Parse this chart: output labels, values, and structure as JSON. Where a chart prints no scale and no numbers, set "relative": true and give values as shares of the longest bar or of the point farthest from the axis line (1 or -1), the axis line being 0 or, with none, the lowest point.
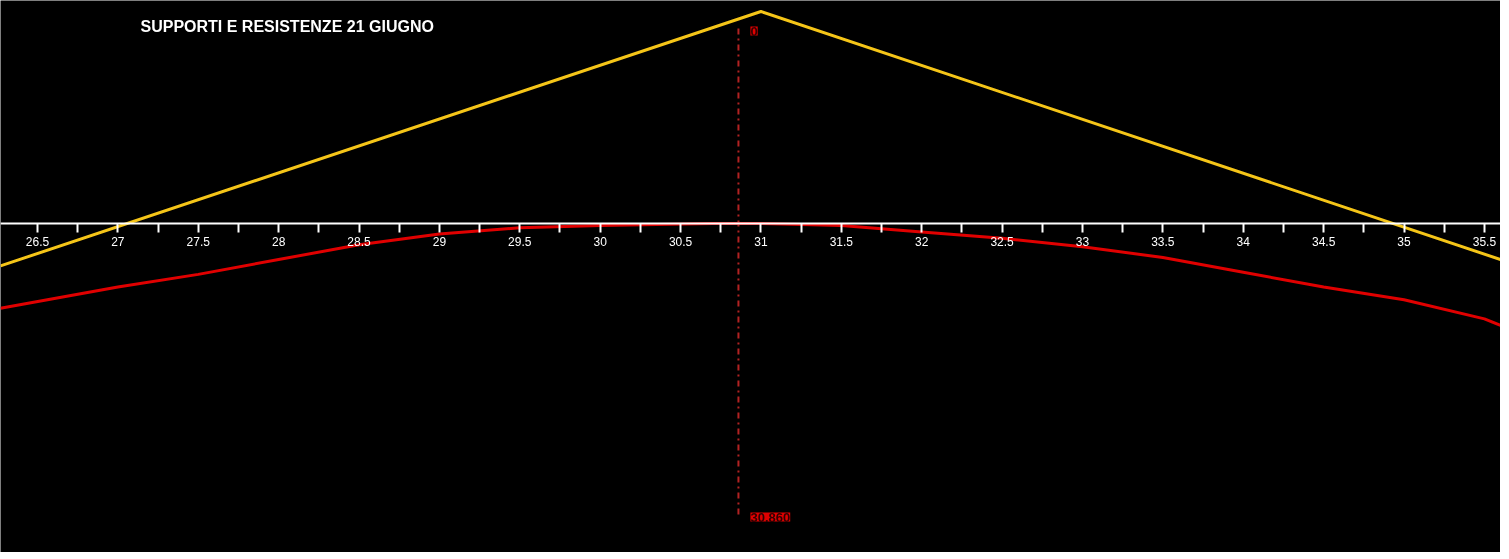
{
  "chart_data": {
    "type": "line",
    "title": "SUPPORTI E RESISTENZE 21 GIUGNO",
    "relative": true,
    "marker": "none",
    "line_style": "solid",
    "xlim": [
      26.27,
      35.6
    ],
    "xticks": [
      26.5,
      {
        "value": 26.75,
        "label": null
      },
      27,
      {
        "value": 27.25,
        "label": null
      },
      27.5,
      {
        "value": 27.75,
        "label": null
      },
      28,
      {
        "value": 28.25,
        "label": null
      },
      28.5,
      {
        "value": 28.75,
        "label": null
      },
      29,
      {
        "value": 29.25,
        "label": null
      },
      29.5,
      {
        "value": 29.75,
        "label": null
      },
      30,
      {
        "value": 30.25,
        "label": null
      },
      30.5,
      {
        "value": 30.75,
        "label": null
      },
      31,
      {
        "value": 31.25,
        "label": null
      },
      31.5,
      {
        "value": 31.75,
        "label": null
      },
      32,
      {
        "value": 32.25,
        "label": null
      },
      32.5,
      {
        "value": 32.75,
        "label": null
      },
      33,
      {
        "value": 33.25,
        "label": null
      },
      33.5,
      {
        "value": 33.75,
        "label": null
      },
      34,
      {
        "value": 34.25,
        "label": null
      },
      34.5,
      {
        "value": 34.75,
        "label": null
      },
      35,
      {
        "value": 35.25,
        "label": null
      },
      35.5
    ],
    "series": [
      {
        "color": "#f5c518",
        "x": [
          26.27,
          31.0,
          35.6
        ],
        "values": [
          -0.2,
          1,
          -0.17
        ]
      },
      {
        "color": "#e00000",
        "x": [
          26.27,
          27,
          27.5,
          28,
          28.5,
          29,
          29.5,
          30,
          30.7,
          31,
          31.5,
          32,
          32.5,
          33,
          33.5,
          34,
          34.5,
          35,
          35.5,
          35.6
        ],
        "values": [
          -0.4,
          -0.3,
          -0.24,
          -0.17,
          -0.1,
          -0.05,
          -0.02,
          -0.01,
          0,
          0,
          -0.01,
          -0.04,
          -0.07,
          -0.11,
          -0.16,
          -0.23,
          -0.3,
          -0.36,
          -0.45,
          -0.48
        ]
      }
    ],
    "ref_lines": [
      {
        "axis": "x",
        "value": 30.86,
        "label": "30.860",
        "color": "#b22222",
        "line_style": "dashdot"
      }
    ],
    "annotations": [
      "0"
    ]
  }
}
